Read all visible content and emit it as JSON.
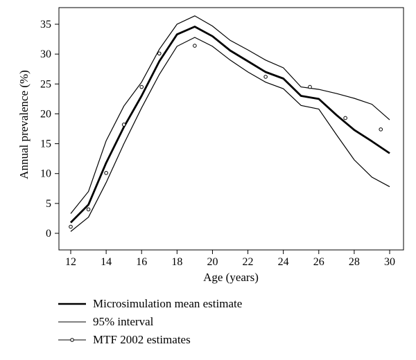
{
  "chart_data": {
    "type": "line",
    "title": "",
    "xlabel": "Age (years)",
    "ylabel": "Annual prevalence (%)",
    "xlim": [
      12,
      30
    ],
    "ylim": [
      0,
      35
    ],
    "xticks": [
      12,
      14,
      16,
      18,
      20,
      22,
      24,
      26,
      28,
      30
    ],
    "yticks": [
      0,
      5,
      10,
      15,
      20,
      25,
      30,
      35
    ],
    "grid": false,
    "legend_position": "below",
    "series": [
      {
        "name": "Microsimulation mean estimate",
        "style": "thick-line",
        "x": [
          12,
          13,
          14,
          15,
          16,
          17,
          18,
          19,
          20,
          21,
          22,
          23,
          24,
          25,
          26,
          27,
          28,
          29,
          30
        ],
        "y": [
          1.8,
          4.8,
          11.8,
          17.8,
          23.0,
          28.8,
          33.3,
          34.6,
          33.0,
          30.6,
          28.8,
          27.0,
          25.9,
          23.0,
          22.5,
          19.8,
          17.3,
          15.4,
          13.4
        ]
      },
      {
        "name": "95% interval",
        "style": "thin-line",
        "x": [
          12,
          13,
          14,
          15,
          16,
          17,
          18,
          19,
          20,
          21,
          22,
          23,
          24,
          25,
          26,
          27,
          28,
          29,
          30
        ],
        "y_upper": [
          3.3,
          7.0,
          15.5,
          21.3,
          25.3,
          30.8,
          35.0,
          36.4,
          34.7,
          32.3,
          30.7,
          29.0,
          27.7,
          24.5,
          24.1,
          23.4,
          22.6,
          21.6,
          19.0
        ],
        "y_lower": [
          0.3,
          2.7,
          8.5,
          15.0,
          21.0,
          26.6,
          31.3,
          32.8,
          31.3,
          29.0,
          27.0,
          25.3,
          24.2,
          21.4,
          20.8,
          16.5,
          12.3,
          9.4,
          7.8
        ]
      },
      {
        "name": "MTF 2002 estimates",
        "style": "points",
        "x": [
          12,
          13,
          14,
          15,
          16,
          17,
          19,
          23,
          25.5,
          27.5,
          29.5
        ],
        "y": [
          1.1,
          4.0,
          10.1,
          18.2,
          24.5,
          30.1,
          31.4,
          26.2,
          24.5,
          19.3,
          17.4
        ]
      }
    ]
  }
}
